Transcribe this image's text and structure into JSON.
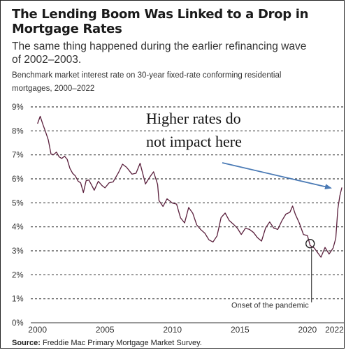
{
  "chart_data": {
    "type": "line",
    "title": "The Lending Boom Was Linked to a Drop in Mortgage Rates",
    "subtitle": "The same thing happened during the earlier refinancing wave of 2002–2003.",
    "description": "Benchmark market interest rate on 30-year fixed-rate conforming residential mortgages, 2000–2022",
    "source_label": "Source:",
    "source_text": " Freddie Mac Primary Mortgage Market Survey.",
    "xlabel": "",
    "ylabel": "",
    "xlim": [
      1999.5,
      2022.7
    ],
    "ylim": [
      0,
      9
    ],
    "grid": true,
    "y_ticks": [
      0,
      1,
      2,
      3,
      4,
      5,
      6,
      7,
      8,
      9
    ],
    "y_tick_labels": [
      "0%",
      "1%",
      "2%",
      "3%",
      "4%",
      "5%",
      "6%",
      "7%",
      "8%",
      "9%"
    ],
    "x_ticks": [
      2000,
      2005,
      2010,
      2015,
      2020,
      2022
    ],
    "x_tick_labels": [
      "2000",
      "2005",
      "2010",
      "2015",
      "2020",
      "2022"
    ],
    "series": [
      {
        "color": "#5a1f3c",
        "x": [
          2000.0,
          2000.2,
          2000.4,
          2000.6,
          2000.8,
          2001.0,
          2001.2,
          2001.4,
          2001.6,
          2001.8,
          2002.0,
          2002.2,
          2002.4,
          2002.6,
          2002.8,
          2003.0,
          2003.2,
          2003.4,
          2003.6,
          2003.8,
          2004.0,
          2004.2,
          2004.5,
          2004.8,
          2005.0,
          2005.3,
          2005.6,
          2006.0,
          2006.3,
          2006.6,
          2007.0,
          2007.3,
          2007.6,
          2008.0,
          2008.3,
          2008.6,
          2008.9,
          2009.0,
          2009.3,
          2009.6,
          2010.0,
          2010.3,
          2010.6,
          2010.9,
          2011.2,
          2011.5,
          2011.8,
          2012.1,
          2012.4,
          2012.7,
          2013.0,
          2013.3,
          2013.6,
          2013.9,
          2014.2,
          2014.5,
          2014.8,
          2015.1,
          2015.4,
          2015.7,
          2016.0,
          2016.3,
          2016.6,
          2016.9,
          2017.2,
          2017.5,
          2017.8,
          2018.1,
          2018.4,
          2018.7,
          2018.9,
          2019.1,
          2019.4,
          2019.7,
          2020.0,
          2020.2,
          2020.5,
          2020.8,
          2021.0,
          2021.3,
          2021.6,
          2021.9,
          2022.1,
          2022.25,
          2022.4,
          2022.55
        ],
        "values": [
          8.3,
          8.6,
          8.2,
          8.0,
          7.6,
          7.1,
          7.0,
          7.1,
          6.9,
          6.8,
          7.0,
          6.8,
          6.5,
          6.2,
          6.1,
          5.9,
          5.8,
          5.5,
          5.9,
          6.0,
          5.7,
          5.5,
          5.9,
          5.7,
          5.7,
          5.8,
          5.9,
          6.2,
          6.6,
          6.5,
          6.2,
          6.3,
          6.6,
          5.8,
          6.0,
          6.3,
          5.8,
          5.1,
          4.9,
          5.1,
          5.0,
          4.9,
          4.4,
          4.2,
          4.8,
          4.6,
          4.0,
          3.9,
          3.7,
          3.5,
          3.4,
          3.6,
          4.4,
          4.5,
          4.3,
          4.1,
          4.0,
          3.7,
          3.9,
          3.9,
          3.7,
          3.6,
          3.4,
          4.0,
          4.2,
          3.9,
          3.9,
          4.2,
          4.6,
          4.6,
          4.9,
          4.5,
          4.1,
          3.7,
          3.6,
          3.3,
          3.1,
          2.9,
          2.7,
          3.1,
          2.9,
          3.1,
          3.6,
          4.7,
          5.3,
          5.6
        ]
      }
    ],
    "annotations": {
      "arrow_text_line1": "Higher rates do",
      "arrow_text_line2": "not impact here",
      "pandemic_label": "Onset of the pandemic",
      "pandemic_point": {
        "x": 2020.2,
        "y": 3.3
      },
      "arrow_color": "#4a7ab5"
    }
  }
}
